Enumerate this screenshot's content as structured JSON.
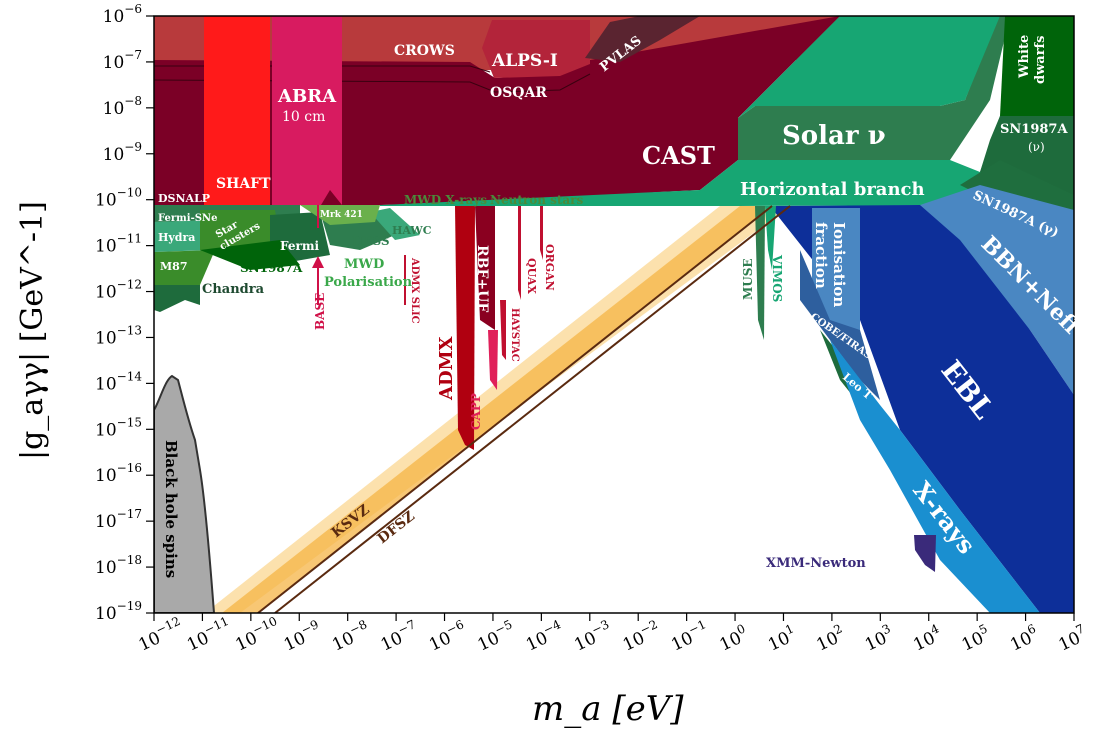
{
  "chart_data": {
    "type": "area",
    "x_scale": "log",
    "y_scale": "log",
    "xlim": [
      1e-12,
      10000000.0
    ],
    "ylim": [
      1e-19,
      1e-06
    ],
    "xlabel": "m_a [eV]",
    "ylabel": "|g_aγγ| [GeV^-1]",
    "x_ticks": [
      -12,
      -11,
      -10,
      -9,
      -8,
      -7,
      -6,
      -5,
      -4,
      -3,
      -2,
      -1,
      0,
      1,
      2,
      3,
      4,
      5,
      6,
      7
    ],
    "y_ticks": [
      -19,
      -18,
      -17,
      -16,
      -15,
      -14,
      -13,
      -12,
      -11,
      -10,
      -9,
      -8,
      -7,
      -6
    ],
    "lines": [
      {
        "name": "KSVZ",
        "color": "#5a2a10",
        "points": [
          [
            3e-10,
            1e-19
          ],
          [
            1.6,
            1e-10
          ]
        ]
      },
      {
        "name": "DFSZ",
        "color": "#5a2a10",
        "points": [
          [
            7e-10,
            1e-19
          ],
          [
            3.5,
            1e-10
          ]
        ]
      }
    ],
    "regions": [
      {
        "name": "CAST",
        "color": "#7b0026"
      },
      {
        "name": "ADMX",
        "color": "#b00010"
      },
      {
        "name": "Solar ν",
        "color": "#2e7d4f"
      },
      {
        "name": "Horizontal branch",
        "color": "#17a673"
      },
      {
        "name": "EBL",
        "color": "#0d2f99"
      },
      {
        "name": "X-rays",
        "color": "#1a8fd0"
      },
      {
        "name": "Black hole spins",
        "color": "#a9a9a9"
      }
    ],
    "labels": {
      "crows": "CROWS",
      "alps": "ALPS-I",
      "pvlas": "PVLAS",
      "osqar": "OSQAR",
      "abra": "ABRA",
      "abra2": "10 cm",
      "cast": "CAST",
      "shaft": "SHAFT",
      "dsnalp": "DSNALP",
      "solar": "Solar ν",
      "hb": "Horizontal branch",
      "white": "White",
      "dwarfs": "dwarfs",
      "sn_nu": "SN1987A",
      "sn_nu2": "(ν)",
      "sn_gamma": "SN1987A (γ)",
      "bbn": "BBN+Neff",
      "ion1": "Ionisation",
      "ion2": "fraction",
      "cobe": "COBE/FIRAS",
      "leot": "Leo T",
      "ebl": "EBL",
      "xrays": "X-rays",
      "xmm": "XMM-Newton",
      "muse": "MUSE",
      "vimos": "VIMOS",
      "mwdx": "MWD X-rays",
      "nstars": "Neutron stars",
      "fermisne": "Fermi-SNe",
      "hydra": "Hydra",
      "m87": "M87",
      "star1": "Star",
      "star2": "clusters",
      "fermi": "Fermi",
      "mrk": "Mrk 421",
      "hess": "HESS",
      "hawc": "HAWC",
      "sn1987a": "SN1987A",
      "chandra": "Chandra",
      "mwd1": "MWD",
      "mwd2": "Polarisation",
      "base": "BASE",
      "admxslic": "ADMX SLIC",
      "admx": "ADMX",
      "rbf": "RBF+UF",
      "capp": "CAPP",
      "haystac": "HAYSTAC",
      "quax": "QUAX",
      "organ": "ORGAN",
      "bhs": "Black hole spins",
      "ksvz": "KSVZ",
      "dfsz": "DFSZ"
    },
    "colors": {
      "cast": "#7b0026",
      "crows": "#b83a3c",
      "alps": "#b3243a",
      "pvlas": "#5a2430",
      "shaft": "#ff1a1a",
      "abra": "#d81b60",
      "solar": "#2e7d4f",
      "hb": "#17a673",
      "wd": "#00640a",
      "sn_nu": "#1e6b3c",
      "sn_gamma": "#1f6e3e",
      "bbn": "#4a87c2",
      "ebl": "#0d2f99",
      "xrays": "#1a8fd0",
      "ion": "#4a87c2",
      "cobe": "#2e5f9e",
      "leot": "#1e6b3c",
      "bhs": "#a9a9a9",
      "admx": "#b00010",
      "axion_band": "#f6b446"
    }
  }
}
